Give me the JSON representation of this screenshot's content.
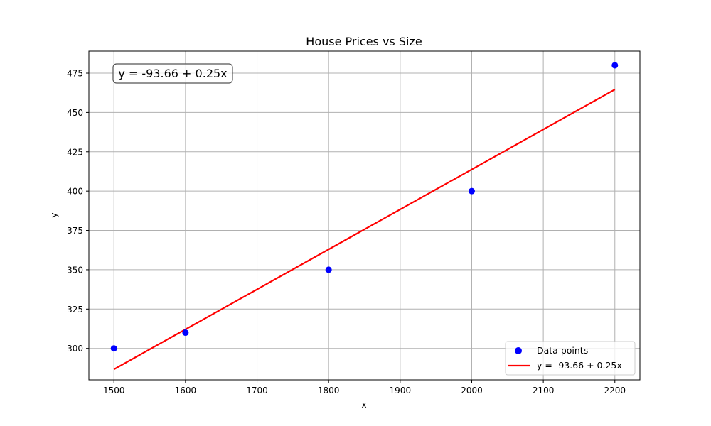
{
  "chart_data": {
    "type": "scatter",
    "title": "House Prices vs Size",
    "xlabel": "x",
    "ylabel": "y",
    "xlim": [
      1465,
      2235
    ],
    "ylim": [
      280,
      489
    ],
    "xticks": [
      1500,
      1600,
      1700,
      1800,
      1900,
      2000,
      2100,
      2200
    ],
    "yticks": [
      300,
      325,
      350,
      375,
      400,
      425,
      450,
      475
    ],
    "grid": true,
    "legend_position": "bottom-right",
    "series": [
      {
        "name": "Data points",
        "type": "scatter",
        "color": "#0000ff",
        "x": [
          1500,
          1600,
          1800,
          2000,
          2200
        ],
        "y": [
          300,
          310,
          350,
          400,
          480
        ]
      },
      {
        "name": "y = -93.66 + 0.25x",
        "type": "line",
        "color": "#ff0000",
        "intercept": -93.66,
        "slope": 0.25,
        "x": [
          1500,
          2200
        ],
        "y": [
          286.7,
          464.6
        ]
      }
    ],
    "annotation": "y = -93.66 + 0.25x"
  }
}
